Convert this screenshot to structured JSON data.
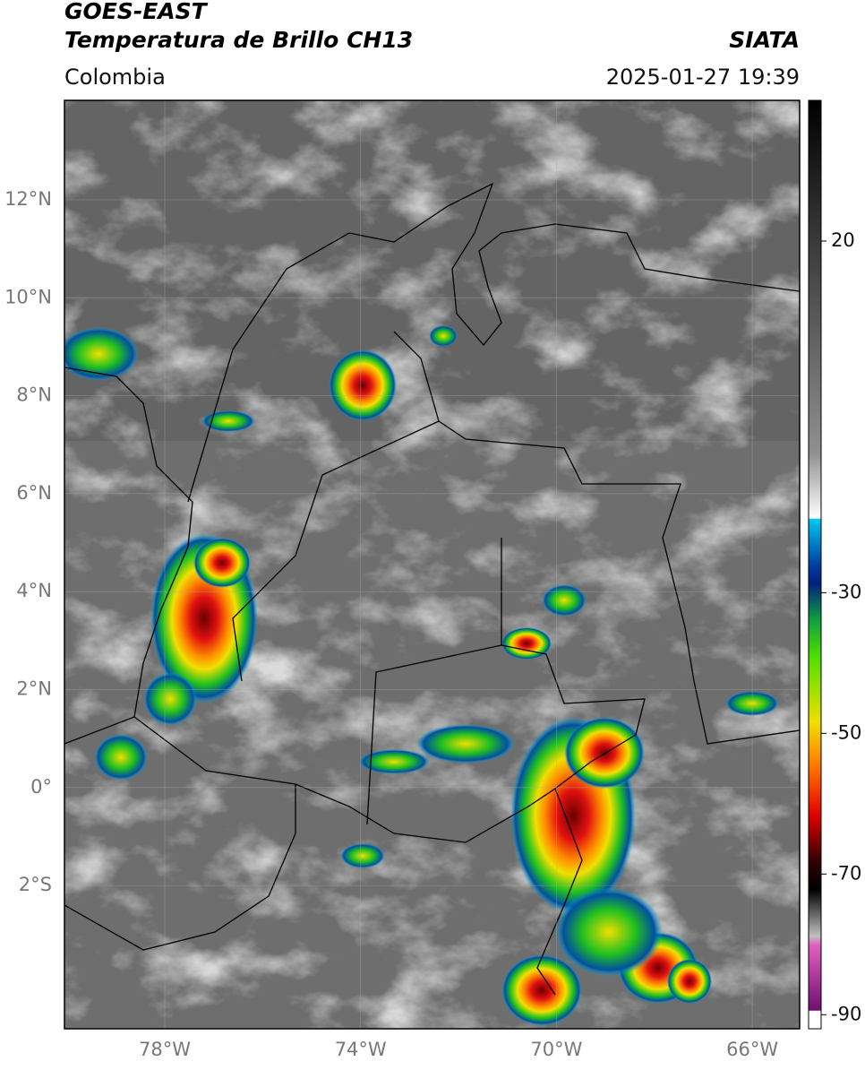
{
  "header": {
    "title": "GOES-EAST",
    "subtitle": "Temperatura de Brillo CH13",
    "source": "SIATA",
    "region": "Colombia",
    "datetime": "2025-01-27 19:39"
  },
  "map": {
    "lat_labels": [
      "12°N",
      "10°N",
      "8°N",
      "6°N",
      "4°N",
      "2°N",
      "0°",
      "2°S"
    ],
    "lon_labels": [
      "78°W",
      "74°W",
      "70°W",
      "66°W"
    ]
  },
  "colorbar": {
    "lim": [
      -92,
      40
    ],
    "ticks": [
      20,
      -30,
      -50,
      -70,
      -90
    ]
  }
}
